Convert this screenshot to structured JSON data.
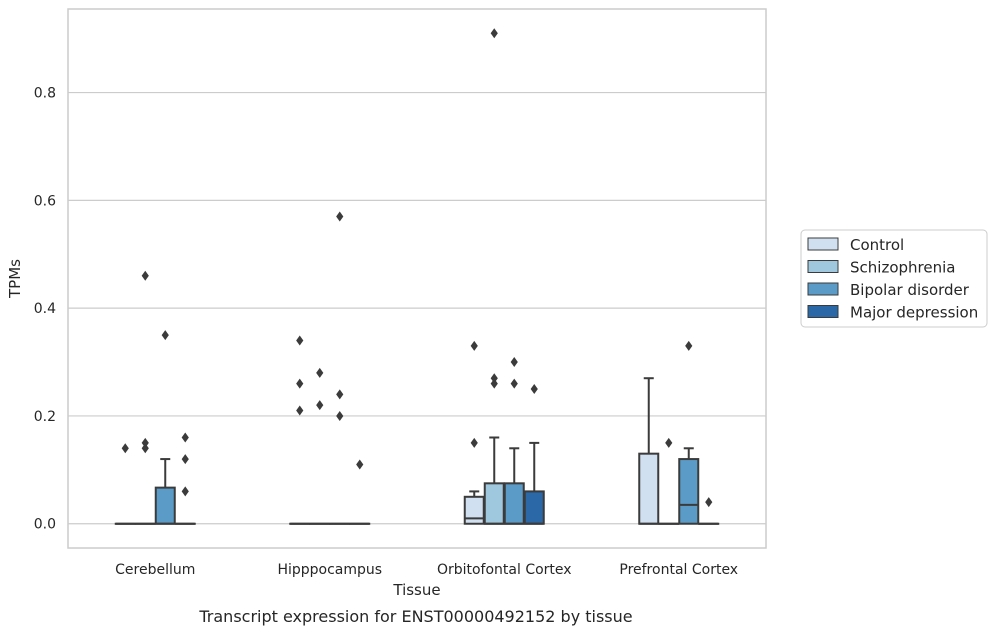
{
  "chart_data": {
    "type": "box",
    "xlabel": "Tissue",
    "ylabel": "TPMs",
    "caption": "Transcript expression for ENST00000492152 by tissue",
    "categories": [
      "Cerebellum",
      "Hipppocampus",
      "Orbitofontal Cortex",
      "Prefrontal Cortex"
    ],
    "yticks": [
      0.0,
      0.2,
      0.4,
      0.6,
      0.8
    ],
    "ytick_labels": [
      "0.0",
      "0.2",
      "0.4",
      "0.6",
      "0.8"
    ],
    "ylim": [
      -0.045,
      0.955
    ],
    "grid": "horizontal",
    "legend_position": "right",
    "series": [
      {
        "name": "Control",
        "color": "#d0e0f0",
        "boxes": [
          {
            "q1": 0,
            "median": 0,
            "q3": 0,
            "whisker_low": 0,
            "whisker_high": 0,
            "outliers": [
              0.14
            ]
          },
          {
            "q1": 0,
            "median": 0,
            "q3": 0,
            "whisker_low": 0,
            "whisker_high": 0,
            "outliers": [
              0.21,
              0.26,
              0.34
            ]
          },
          {
            "q1": 0,
            "median": 0.01,
            "q3": 0.05,
            "whisker_low": 0,
            "whisker_high": 0.06,
            "outliers": [
              0.15,
              0.33
            ]
          },
          {
            "q1": 0,
            "median": 0,
            "q3": 0.13,
            "whisker_low": 0,
            "whisker_high": 0.27,
            "outliers": []
          }
        ]
      },
      {
        "name": "Schizophrenia",
        "color": "#9fc7de",
        "boxes": [
          {
            "q1": 0,
            "median": 0,
            "q3": 0,
            "whisker_low": 0,
            "whisker_high": 0,
            "outliers": [
              0.14,
              0.15,
              0.46
            ]
          },
          {
            "q1": 0,
            "median": 0,
            "q3": 0,
            "whisker_low": 0,
            "whisker_high": 0,
            "outliers": [
              0.22,
              0.28
            ]
          },
          {
            "q1": 0,
            "median": 0,
            "q3": 0.075,
            "whisker_low": 0,
            "whisker_high": 0.16,
            "outliers": [
              0.26,
              0.27,
              0.91
            ]
          },
          {
            "q1": 0,
            "median": 0,
            "q3": 0,
            "whisker_low": 0,
            "whisker_high": 0,
            "outliers": [
              0.15
            ]
          }
        ]
      },
      {
        "name": "Bipolar disorder",
        "color": "#5a9bc7",
        "boxes": [
          {
            "q1": 0,
            "median": 0,
            "q3": 0.067,
            "whisker_low": 0,
            "whisker_high": 0.12,
            "outliers": [
              0.35
            ]
          },
          {
            "q1": 0,
            "median": 0,
            "q3": 0,
            "whisker_low": 0,
            "whisker_high": 0,
            "outliers": [
              0.2,
              0.24,
              0.57
            ]
          },
          {
            "q1": 0,
            "median": 0,
            "q3": 0.075,
            "whisker_low": 0,
            "whisker_high": 0.14,
            "outliers": [
              0.26,
              0.3
            ]
          },
          {
            "q1": 0,
            "median": 0.035,
            "q3": 0.12,
            "whisker_low": 0,
            "whisker_high": 0.14,
            "outliers": [
              0.33
            ]
          }
        ]
      },
      {
        "name": "Major depression",
        "color": "#2a68a8",
        "boxes": [
          {
            "q1": 0,
            "median": 0,
            "q3": 0,
            "whisker_low": 0,
            "whisker_high": 0,
            "outliers": [
              0.06,
              0.12,
              0.16
            ]
          },
          {
            "q1": 0,
            "median": 0,
            "q3": 0,
            "whisker_low": 0,
            "whisker_high": 0,
            "outliers": [
              0.11
            ]
          },
          {
            "q1": 0,
            "median": 0,
            "q3": 0.06,
            "whisker_low": 0,
            "whisker_high": 0.15,
            "outliers": [
              0.25
            ]
          },
          {
            "q1": 0,
            "median": 0,
            "q3": 0,
            "whisker_low": 0,
            "whisker_high": 0,
            "outliers": [
              0.04
            ]
          }
        ]
      }
    ]
  }
}
